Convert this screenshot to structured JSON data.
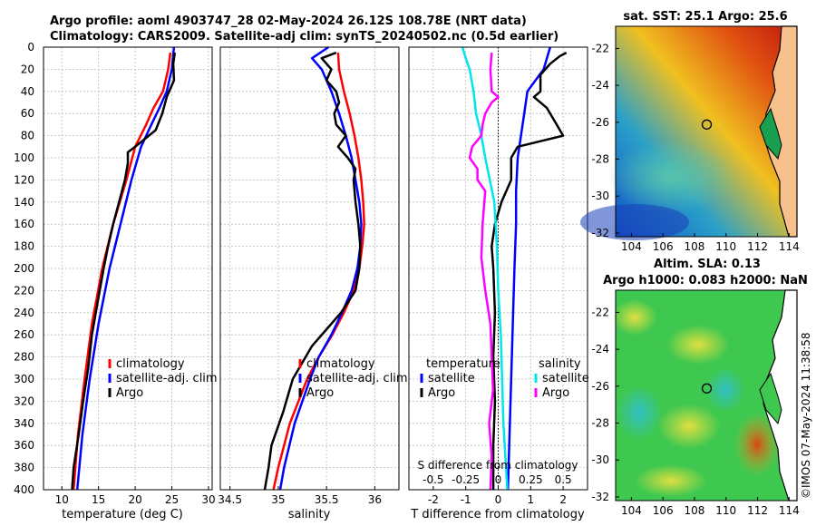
{
  "title": {
    "line1": "Argo profile: aoml 4903747_28 02-May-2024 26.12S 108.78E (NRT data)",
    "line2": "Climatology: CARS2009. Satellite-adj clim: synTS_20240502.nc (0.5d earlier)"
  },
  "watermark": "©IMOS 07-May-2024 11:38:58",
  "colors": {
    "climatology": "#ff0000",
    "satellite": "#0000ff",
    "argo": "#000000",
    "sal_satellite": "#00e5ee",
    "sal_argo": "#ff00ff"
  },
  "depth_axis": {
    "ylim": [
      0,
      400
    ],
    "ticks": [
      0,
      20,
      40,
      60,
      80,
      100,
      120,
      140,
      160,
      180,
      200,
      220,
      240,
      260,
      280,
      300,
      320,
      340,
      360,
      380,
      400
    ]
  },
  "chart_data": [
    {
      "type": "line",
      "id": "temperature",
      "xlabel": "temperature (deg C)",
      "xlim": [
        7.5,
        30.5
      ],
      "xticks": [
        10,
        15,
        20,
        25,
        30
      ],
      "ylim": [
        0,
        400
      ],
      "legend": [
        "climatology",
        "satellite-adj. clim",
        "Argo"
      ],
      "series": [
        {
          "name": "climatology",
          "color": "#ff0000",
          "depth": [
            5,
            20,
            40,
            55,
            70,
            90,
            120,
            160,
            200,
            250,
            300,
            350,
            400
          ],
          "values": [
            24.8,
            24.5,
            23.8,
            22.5,
            21.5,
            20.0,
            18.8,
            17.0,
            15.5,
            14.1,
            13.1,
            12.2,
            11.6
          ]
        },
        {
          "name": "satellite-adj. clim",
          "color": "#0000ff",
          "depth": [
            0,
            20,
            40,
            55,
            70,
            90,
            120,
            160,
            200,
            250,
            300,
            350,
            400
          ],
          "values": [
            25.3,
            25.0,
            24.3,
            23.3,
            22.2,
            20.8,
            19.5,
            18.0,
            16.5,
            15.0,
            13.8,
            12.8,
            12.1
          ]
        },
        {
          "name": "Argo",
          "color": "#000000",
          "depth": [
            5,
            15,
            30,
            45,
            60,
            75,
            90,
            95,
            105,
            120,
            140,
            160,
            180,
            200,
            230,
            260,
            290,
            320,
            350,
            380,
            400
          ],
          "values": [
            25.4,
            25.2,
            25.3,
            24.3,
            23.7,
            22.8,
            20.0,
            19.0,
            19.0,
            18.6,
            17.8,
            17.0,
            16.3,
            15.7,
            14.9,
            14.1,
            13.6,
            12.9,
            12.3,
            11.6,
            11.4
          ]
        }
      ]
    },
    {
      "type": "line",
      "id": "salinity",
      "xlabel": "salinity",
      "xlim": [
        34.4,
        36.25
      ],
      "xticks": [
        34.5,
        35,
        35.5,
        36
      ],
      "xticklabels": [
        "34.5",
        "35",
        "35.5",
        "36"
      ],
      "ylim": [
        0,
        400
      ],
      "legend": [
        "climatology",
        "satellite-adj. clim",
        "Argo"
      ],
      "series": [
        {
          "name": "climatology",
          "color": "#ff0000",
          "depth": [
            5,
            20,
            40,
            60,
            80,
            100,
            120,
            140,
            160,
            180,
            200,
            220,
            240,
            260,
            280,
            300,
            340,
            380,
            400
          ],
          "values": [
            35.62,
            35.63,
            35.68,
            35.74,
            35.79,
            35.83,
            35.86,
            35.88,
            35.89,
            35.87,
            35.84,
            35.78,
            35.68,
            35.56,
            35.42,
            35.3,
            35.12,
            35.0,
            34.95
          ]
        },
        {
          "name": "satellite-adj. clim",
          "color": "#0000ff",
          "depth": [
            0,
            10,
            20,
            40,
            60,
            80,
            100,
            120,
            140,
            160,
            180,
            200,
            220,
            240,
            260,
            280,
            300,
            340,
            380,
            400
          ],
          "values": [
            35.52,
            35.35,
            35.45,
            35.55,
            35.63,
            35.7,
            35.76,
            35.8,
            35.84,
            35.86,
            35.85,
            35.82,
            35.76,
            35.66,
            35.55,
            35.42,
            35.33,
            35.17,
            35.06,
            35.02
          ]
        },
        {
          "name": "Argo",
          "color": "#000000",
          "depth": [
            5,
            10,
            20,
            30,
            40,
            50,
            60,
            70,
            80,
            90,
            100,
            110,
            120,
            140,
            160,
            180,
            200,
            220,
            240,
            250,
            270,
            300,
            330,
            360,
            380,
            400
          ],
          "values": [
            35.6,
            35.45,
            35.55,
            35.5,
            35.6,
            35.63,
            35.58,
            35.6,
            35.7,
            35.62,
            35.72,
            35.8,
            35.78,
            35.8,
            35.83,
            35.85,
            35.84,
            35.8,
            35.65,
            35.55,
            35.35,
            35.15,
            35.05,
            34.93,
            34.9,
            34.86
          ]
        }
      ]
    },
    {
      "type": "line",
      "id": "differences",
      "xlabel": "T difference from climatology",
      "xlim": [
        -2.75,
        2.75
      ],
      "xticks": [
        -2,
        -1,
        0,
        1,
        2
      ],
      "s_axis_label": "S difference from climatology",
      "s_ticks": [
        -0.5,
        -0.25,
        0,
        0.25,
        0.5
      ],
      "s_ticklabels": [
        "-0.5",
        "-0.25",
        "0",
        "0.25",
        "0.5"
      ],
      "s_scale": 4,
      "ylim": [
        0,
        400
      ],
      "legend_temperature": {
        "title": "temperature",
        "items": [
          "satellite",
          "Argo"
        ]
      },
      "legend_salinity": {
        "title": "salinity",
        "items": [
          "satellite",
          "Argo"
        ]
      },
      "series": [
        {
          "name": "T satellite",
          "variable": "temperature",
          "color": "#0000ff",
          "depth": [
            0,
            20,
            40,
            60,
            80,
            100,
            130,
            160,
            200,
            250,
            300,
            350,
            400
          ],
          "values": [
            1.6,
            1.4,
            0.9,
            0.8,
            0.7,
            0.6,
            0.55,
            0.55,
            0.5,
            0.45,
            0.4,
            0.35,
            0.3
          ]
        },
        {
          "name": "T Argo",
          "variable": "temperature",
          "color": "#000000",
          "depth": [
            5,
            8,
            15,
            25,
            40,
            45,
            55,
            70,
            80,
            85,
            90,
            100,
            120,
            140,
            160,
            180,
            200,
            240,
            280,
            320,
            360,
            400
          ],
          "values": [
            2.1,
            1.9,
            1.6,
            1.3,
            1.3,
            1.1,
            1.5,
            1.8,
            2.0,
            1.3,
            0.6,
            0.4,
            0.4,
            0.1,
            -0.1,
            -0.2,
            -0.15,
            -0.1,
            -0.15,
            -0.1,
            -0.15,
            -0.15
          ]
        },
        {
          "name": "S satellite",
          "variable": "salinity",
          "color": "#00e5ee",
          "depth": [
            0,
            10,
            20,
            40,
            60,
            80,
            100,
            140,
            180,
            220,
            260,
            300,
            340,
            380,
            400
          ],
          "values": [
            -0.275,
            -0.25,
            -0.22,
            -0.19,
            -0.17,
            -0.13,
            -0.1,
            -0.03,
            -0.01,
            0.0,
            0.02,
            0.03,
            0.04,
            0.06,
            0.07
          ]
        },
        {
          "name": "S Argo",
          "variable": "salinity",
          "color": "#ff00ff",
          "depth": [
            5,
            20,
            40,
            45,
            50,
            60,
            70,
            80,
            90,
            100,
            110,
            120,
            130,
            160,
            190,
            220,
            250,
            280,
            310,
            340,
            370,
            400
          ],
          "values": [
            -0.05,
            -0.06,
            -0.05,
            -0.0,
            -0.05,
            -0.1,
            -0.12,
            -0.13,
            -0.2,
            -0.22,
            -0.16,
            -0.16,
            -0.1,
            -0.12,
            -0.13,
            -0.1,
            -0.06,
            -0.05,
            -0.04,
            -0.07,
            -0.05,
            -0.06
          ]
        }
      ]
    }
  ],
  "maps": [
    {
      "id": "sst-map",
      "title": "sat. SST: 25.1 Argo: 25.6",
      "xticks": [
        104,
        106,
        108,
        110,
        112,
        114
      ],
      "yticks": [
        -22,
        -24,
        -26,
        -28,
        -30,
        -32
      ],
      "xlim": [
        103,
        114.5
      ],
      "ylim": [
        -32.2,
        -20.8
      ],
      "marker": {
        "lon": 108.78,
        "lat": -26.12
      }
    },
    {
      "id": "sla-map",
      "title_line1": "Altim. SLA: 0.13",
      "title_line2": "Argo h1000: 0.083 h2000: NaN",
      "xticks": [
        104,
        106,
        108,
        110,
        112,
        114
      ],
      "yticks": [
        -22,
        -24,
        -26,
        -28,
        -30,
        -32
      ],
      "xlim": [
        103,
        114.5
      ],
      "ylim": [
        -32.2,
        -20.8
      ],
      "marker": {
        "lon": 108.78,
        "lat": -26.12
      }
    }
  ]
}
